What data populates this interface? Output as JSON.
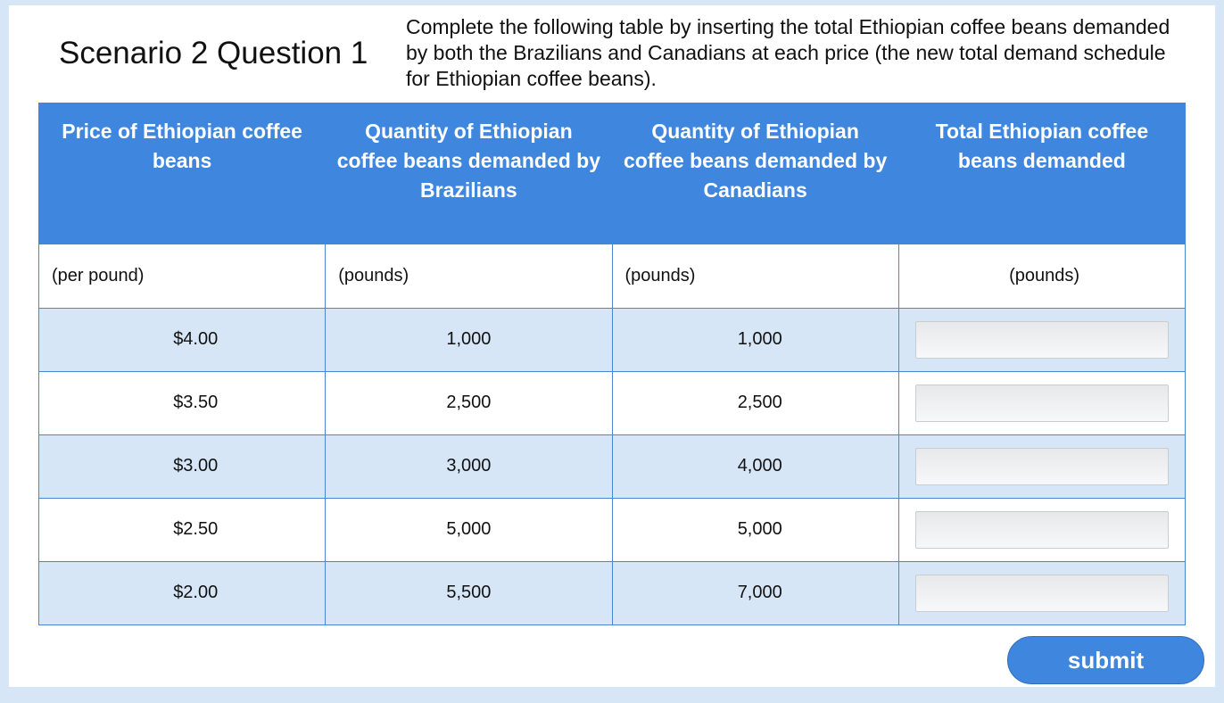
{
  "title": "Scenario 2 Question 1",
  "instructions": "Complete the following table by inserting the total Ethiopian coffee beans demanded by both the Brazilians and Canadians at each price (the new total demand schedule for Ethiopian coffee beans).",
  "table": {
    "headers": [
      "Price of Ethiopian coffee beans",
      "Quantity of Ethiopian coffee beans demanded by Brazilians",
      "Quantity of Ethiopian coffee beans demanded by Canadians",
      "Total Ethiopian coffee beans demanded"
    ],
    "units": [
      "(per pound)",
      "(pounds)",
      "(pounds)",
      "(pounds)"
    ],
    "rows": [
      {
        "price": "$4.00",
        "brazilians": "1,000",
        "canadians": "1,000",
        "total": ""
      },
      {
        "price": "$3.50",
        "brazilians": "2,500",
        "canadians": "2,500",
        "total": ""
      },
      {
        "price": "$3.00",
        "brazilians": "3,000",
        "canadians": "4,000",
        "total": ""
      },
      {
        "price": "$2.50",
        "brazilians": "5,000",
        "canadians": "5,000",
        "total": ""
      },
      {
        "price": "$2.00",
        "brazilians": "5,500",
        "canadians": "7,000",
        "total": ""
      }
    ]
  },
  "submit_label": "submit",
  "colors": {
    "header_bg": "#3f86de",
    "row_shade": "#d6e6f7",
    "border": "#4a86d4"
  }
}
